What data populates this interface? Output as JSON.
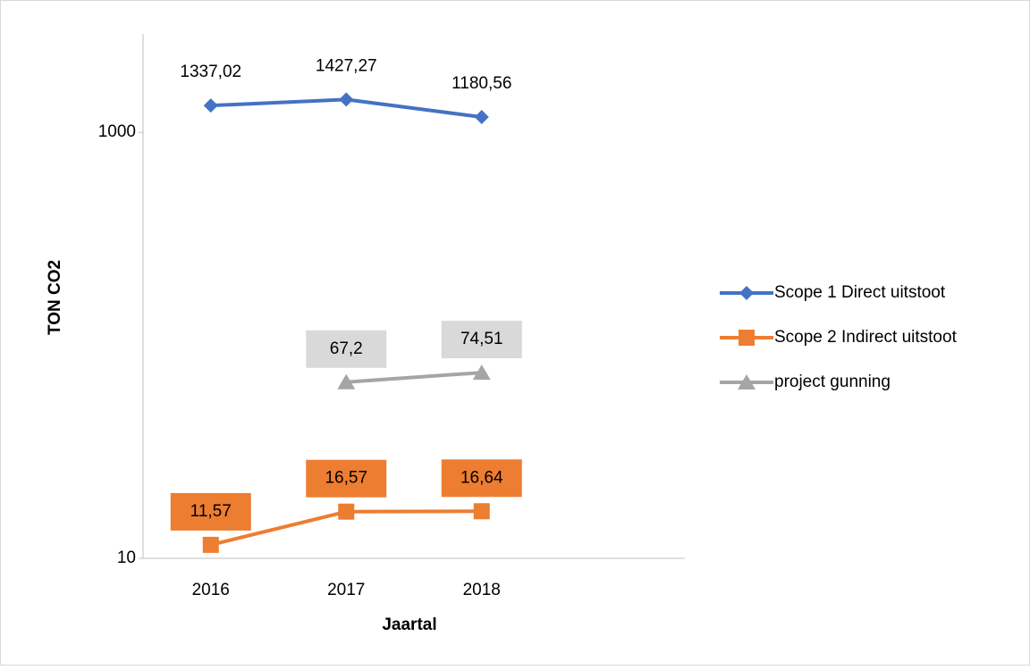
{
  "chart_data": {
    "type": "line",
    "categories": [
      "2016",
      "2017",
      "2018",
      null
    ],
    "series": [
      {
        "name": "Scope 1 Direct uitstoot",
        "color": "#4472c4",
        "marker": "diamond",
        "values": [
          1337.02,
          1427.27,
          1180.56,
          null
        ],
        "value_labels": [
          "1337,02",
          "1427,27",
          "1180,56",
          null
        ]
      },
      {
        "name": "Scope 2 Indirect uitstoot",
        "color": "#ed7d31",
        "marker": "square",
        "values": [
          11.57,
          16.57,
          16.64,
          null
        ],
        "value_labels": [
          "11,57",
          "16,57",
          "16,64",
          null
        ]
      },
      {
        "name": "project gunning",
        "color": "#a5a5a5",
        "marker": "triangle",
        "values": [
          null,
          67.2,
          74.51,
          null
        ],
        "value_labels": [
          null,
          "67,2",
          "74,51",
          null
        ]
      }
    ],
    "ylim": [
      10,
      2900
    ],
    "yticks": [
      10,
      1000
    ],
    "log_scale": true,
    "xlabel": "Jaartal",
    "ylabel": "TON CO2",
    "grid": false,
    "legend": "right"
  }
}
